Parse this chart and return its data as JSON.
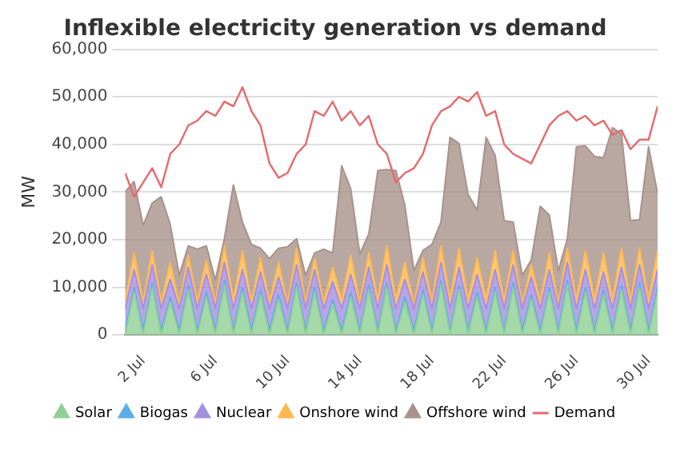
{
  "chart_data": {
    "type": "area",
    "title": "Inflexible electricity generation vs demand",
    "ylabel": "MW",
    "stacked": true,
    "legend": "bottom",
    "grid": "y",
    "marker": "none",
    "x": [
      "--07-01T00:00",
      "--07-01T12:00",
      "--07-02T00:00",
      "--07-02T12:00",
      "--07-03T00:00",
      "--07-03T12:00",
      "--07-04T00:00",
      "--07-04T12:00",
      "--07-05T00:00",
      "--07-05T12:00",
      "--07-06T00:00",
      "--07-06T12:00",
      "--07-07T00:00",
      "--07-07T12:00",
      "--07-08T00:00",
      "--07-08T12:00",
      "--07-09T00:00",
      "--07-09T12:00",
      "--07-10T00:00",
      "--07-10T12:00",
      "--07-11T00:00",
      "--07-11T12:00",
      "--07-12T00:00",
      "--07-12T12:00",
      "--07-13T00:00",
      "--07-13T12:00",
      "--07-14T00:00",
      "--07-14T12:00",
      "--07-15T00:00",
      "--07-15T12:00",
      "--07-16T00:00",
      "--07-16T12:00",
      "--07-17T00:00",
      "--07-17T12:00",
      "--07-18T00:00",
      "--07-18T12:00",
      "--07-19T00:00",
      "--07-19T12:00",
      "--07-20T00:00",
      "--07-20T12:00",
      "--07-21T00:00",
      "--07-21T12:00",
      "--07-22T00:00",
      "--07-22T12:00",
      "--07-23T00:00",
      "--07-23T12:00",
      "--07-24T00:00",
      "--07-24T12:00",
      "--07-25T00:00",
      "--07-25T12:00",
      "--07-26T00:00",
      "--07-26T12:00",
      "--07-27T00:00",
      "--07-27T12:00",
      "--07-28T00:00",
      "--07-28T12:00",
      "--07-29T00:00",
      "--07-29T12:00",
      "--07-30T00:00",
      "--07-30T12:00"
    ],
    "xlim": [
      "--07-01T00:00",
      "--07-30T12:00"
    ],
    "xticks": [
      {
        "value": "--07-02",
        "label": "2 Jul"
      },
      {
        "value": "--07-06",
        "label": "6 Jul"
      },
      {
        "value": "--07-10",
        "label": "10 Jul"
      },
      {
        "value": "--07-14",
        "label": "14 Jul"
      },
      {
        "value": "--07-18",
        "label": "18 Jul"
      },
      {
        "value": "--07-22",
        "label": "22 Jul"
      },
      {
        "value": "--07-26",
        "label": "26 Jul"
      },
      {
        "value": "--07-30",
        "label": "30 Jul"
      }
    ],
    "ylim": [
      0,
      60000
    ],
    "yticks": [
      0,
      {
        "value": 10000,
        "label": "10,000"
      },
      {
        "value": 20000,
        "label": "20,000"
      },
      {
        "value": 30000,
        "label": "30,000"
      },
      {
        "value": 40000,
        "label": "40,000"
      },
      {
        "value": 50000,
        "label": "50,000"
      },
      {
        "value": 60000,
        "label": "60,000"
      }
    ],
    "series": [
      {
        "name": "Solar",
        "color": "#90d095",
        "values": [
          0,
          9000,
          0,
          10000,
          0,
          7000,
          0,
          9500,
          0,
          8000,
          0,
          10500,
          0,
          9000,
          0,
          8500,
          0,
          7500,
          0,
          10000,
          0,
          9000,
          0,
          6500,
          0,
          8000,
          0,
          9500,
          0,
          10000,
          0,
          7000,
          0,
          8500,
          0,
          10500,
          0,
          9500,
          0,
          8000,
          0,
          9000,
          0,
          10000,
          0,
          7500,
          0,
          9000,
          0,
          10500,
          0,
          9000,
          0,
          8500,
          0,
          9500,
          0,
          10000,
          0,
          9000
        ]
      },
      {
        "name": "Biogas",
        "color": "#5caee8",
        "values": [
          900,
          900,
          900,
          900,
          900,
          900,
          900,
          900,
          900,
          900,
          900,
          900,
          900,
          900,
          900,
          900,
          900,
          900,
          900,
          900,
          900,
          900,
          900,
          900,
          900,
          900,
          900,
          900,
          900,
          900,
          900,
          900,
          900,
          900,
          900,
          900,
          900,
          900,
          900,
          900,
          900,
          900,
          900,
          900,
          900,
          900,
          900,
          900,
          900,
          900,
          900,
          900,
          900,
          900,
          900,
          900,
          900,
          900,
          900,
          900
        ]
      },
      {
        "name": "Nuclear",
        "color": "#a58fe0",
        "values": [
          4600,
          3800,
          4600,
          3800,
          4600,
          3800,
          4600,
          3800,
          4600,
          3800,
          4600,
          3800,
          4600,
          3800,
          4600,
          3800,
          4600,
          3800,
          4600,
          3800,
          4600,
          3800,
          4600,
          3800,
          4600,
          3800,
          4600,
          3800,
          4600,
          3800,
          4600,
          3800,
          4600,
          3800,
          4600,
          3800,
          4600,
          3800,
          4600,
          3800,
          4600,
          3800,
          4600,
          3800,
          4600,
          3800,
          4600,
          3800,
          4600,
          3800,
          4600,
          3800,
          4600,
          3800,
          4600,
          3800,
          4600,
          3800,
          4600,
          3800
        ]
      },
      {
        "name": "Onshore wind",
        "color": "#ffb950",
        "values": [
          1500,
          3500,
          1500,
          3000,
          1500,
          3500,
          1000,
          2500,
          1500,
          3000,
          1000,
          3500,
          2000,
          4000,
          1500,
          3000,
          1500,
          3000,
          1000,
          3500,
          1000,
          2500,
          1500,
          3000,
          2000,
          4000,
          1500,
          3000,
          2000,
          4000,
          2000,
          3500,
          1000,
          3000,
          1500,
          3500,
          2000,
          4000,
          2000,
          3500,
          2000,
          4000,
          1500,
          3000,
          1000,
          2500,
          1500,
          3500,
          1000,
          3000,
          2000,
          4000,
          2000,
          4000,
          2000,
          4000,
          1500,
          3500,
          2000,
          4000
        ]
      },
      {
        "name": "Offshore wind",
        "color": "#a8928a",
        "values": [
          23000,
          15000,
          16000,
          10000,
          22000,
          8000,
          6000,
          2000,
          11000,
          3000,
          5000,
          1500,
          24000,
          6000,
          12000,
          2000,
          9000,
          3000,
          12000,
          2000,
          6000,
          1000,
          11000,
          3000,
          28000,
          14000,
          10000,
          4000,
          27000,
          16000,
          27000,
          12000,
          7000,
          1500,
          12000,
          5000,
          34000,
          22000,
          22000,
          10000,
          34000,
          20000,
          17000,
          6000,
          6000,
          1000,
          20000,
          8000,
          7000,
          2000,
          32000,
          22000,
          30000,
          20000,
          36000,
          24000,
          17000,
          6000,
          32000,
          12000
        ]
      },
      {
        "name": "Demand",
        "type": "line",
        "color": "#e8696b",
        "values": [
          34000,
          29000,
          32000,
          35000,
          31000,
          38000,
          40000,
          44000,
          45000,
          47000,
          46000,
          49000,
          48000,
          52000,
          47000,
          44000,
          36000,
          33000,
          34000,
          38000,
          40000,
          47000,
          46000,
          49000,
          45000,
          47000,
          44000,
          46000,
          40000,
          38000,
          32000,
          34000,
          35000,
          38000,
          44000,
          47000,
          48000,
          50000,
          49000,
          51000,
          46000,
          47000,
          40000,
          38000,
          37000,
          36000,
          40000,
          44000,
          46000,
          47000,
          45000,
          46000,
          44000,
          45000,
          42000,
          43000,
          39000,
          41000,
          41000,
          48000
        ]
      }
    ]
  }
}
